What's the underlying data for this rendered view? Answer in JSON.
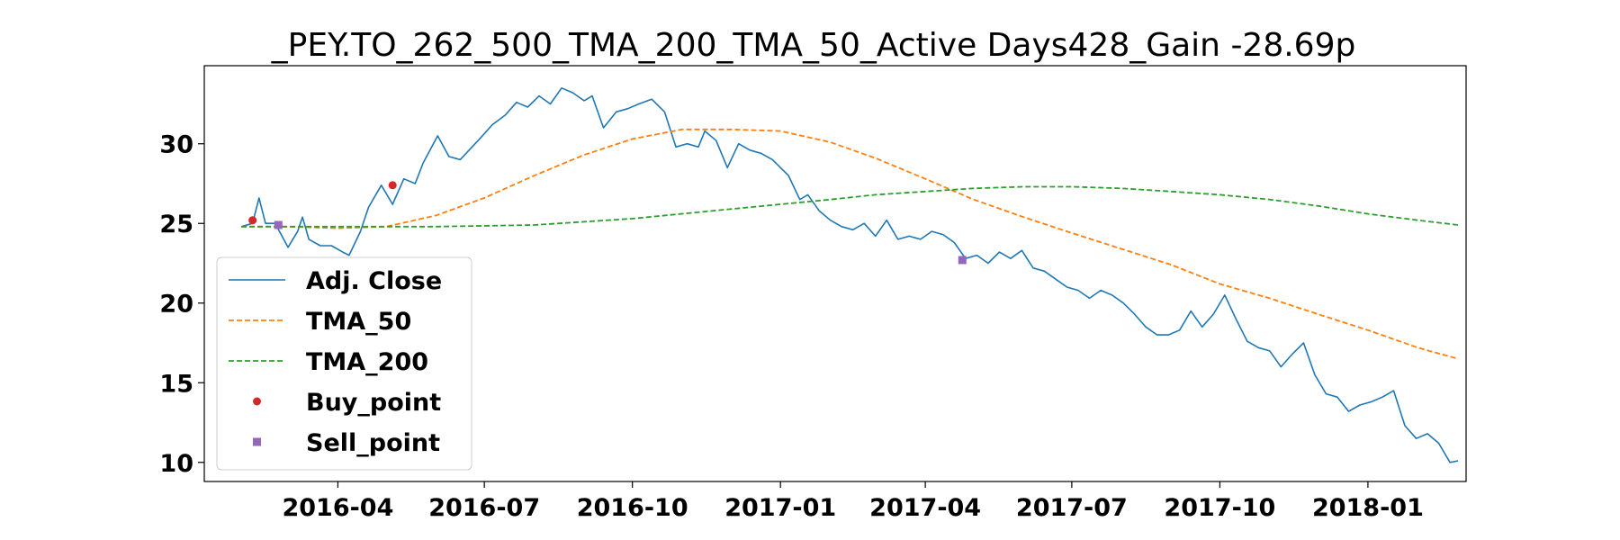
{
  "chart_data": {
    "type": "line",
    "title": "_PEY.TO_262_500_TMA_200_TMA_50_Active Days428_Gain -28.69p",
    "xlabel": "",
    "ylabel": "",
    "xlim": [
      "2016-01-09",
      "2018-03-03"
    ],
    "ylim": [
      8.8,
      34.9
    ],
    "grid": false,
    "legend_position": "lower-left",
    "x_ticks": [
      "2016-04",
      "2016-07",
      "2016-10",
      "2017-01",
      "2017-04",
      "2017-07",
      "2017-10",
      "2018-01"
    ],
    "y_ticks": [
      10,
      15,
      20,
      25,
      30
    ],
    "series": [
      {
        "name": "Adj. Close",
        "style": "solid",
        "color": "#1f77b4",
        "points": [
          [
            "2016-02-01",
            24.8
          ],
          [
            "2016-02-08",
            25.0
          ],
          [
            "2016-02-12",
            26.6
          ],
          [
            "2016-02-16",
            25.0
          ],
          [
            "2016-02-22",
            25.0
          ],
          [
            "2016-03-01",
            23.5
          ],
          [
            "2016-03-07",
            24.5
          ],
          [
            "2016-03-10",
            25.4
          ],
          [
            "2016-03-14",
            24.0
          ],
          [
            "2016-03-21",
            23.6
          ],
          [
            "2016-03-28",
            23.6
          ],
          [
            "2016-04-04",
            23.2
          ],
          [
            "2016-04-08",
            23.0
          ],
          [
            "2016-04-15",
            24.5
          ],
          [
            "2016-04-20",
            26.0
          ],
          [
            "2016-04-28",
            27.4
          ],
          [
            "2016-05-05",
            26.2
          ],
          [
            "2016-05-12",
            27.8
          ],
          [
            "2016-05-19",
            27.5
          ],
          [
            "2016-05-24",
            28.8
          ],
          [
            "2016-06-02",
            30.5
          ],
          [
            "2016-06-09",
            29.2
          ],
          [
            "2016-06-16",
            29.0
          ],
          [
            "2016-06-28",
            30.3
          ],
          [
            "2016-07-06",
            31.2
          ],
          [
            "2016-07-14",
            31.8
          ],
          [
            "2016-07-21",
            32.6
          ],
          [
            "2016-07-28",
            32.3
          ],
          [
            "2016-08-04",
            33.0
          ],
          [
            "2016-08-11",
            32.5
          ],
          [
            "2016-08-18",
            33.5
          ],
          [
            "2016-08-25",
            33.2
          ],
          [
            "2016-09-01",
            32.7
          ],
          [
            "2016-09-06",
            33.0
          ],
          [
            "2016-09-13",
            31.0
          ],
          [
            "2016-09-21",
            32.0
          ],
          [
            "2016-09-28",
            32.2
          ],
          [
            "2016-10-05",
            32.5
          ],
          [
            "2016-10-13",
            32.8
          ],
          [
            "2016-10-21",
            32.0
          ],
          [
            "2016-10-28",
            29.8
          ],
          [
            "2016-11-04",
            30.0
          ],
          [
            "2016-11-11",
            29.8
          ],
          [
            "2016-11-15",
            30.8
          ],
          [
            "2016-11-22",
            30.2
          ],
          [
            "2016-11-29",
            28.5
          ],
          [
            "2016-12-06",
            30.0
          ],
          [
            "2016-12-13",
            29.6
          ],
          [
            "2016-12-20",
            29.4
          ],
          [
            "2016-12-27",
            29.0
          ],
          [
            "2017-01-06",
            28.0
          ],
          [
            "2017-01-13",
            26.5
          ],
          [
            "2017-01-18",
            26.8
          ],
          [
            "2017-01-25",
            25.8
          ],
          [
            "2017-02-01",
            25.2
          ],
          [
            "2017-02-08",
            24.8
          ],
          [
            "2017-02-15",
            24.6
          ],
          [
            "2017-02-22",
            25.0
          ],
          [
            "2017-03-01",
            24.2
          ],
          [
            "2017-03-08",
            25.2
          ],
          [
            "2017-03-15",
            24.0
          ],
          [
            "2017-03-22",
            24.2
          ],
          [
            "2017-03-29",
            24.0
          ],
          [
            "2017-04-05",
            24.5
          ],
          [
            "2017-04-12",
            24.3
          ],
          [
            "2017-04-19",
            23.8
          ],
          [
            "2017-04-26",
            22.8
          ],
          [
            "2017-05-03",
            23.0
          ],
          [
            "2017-05-10",
            22.5
          ],
          [
            "2017-05-17",
            23.2
          ],
          [
            "2017-05-24",
            22.8
          ],
          [
            "2017-05-31",
            23.3
          ],
          [
            "2017-06-07",
            22.2
          ],
          [
            "2017-06-14",
            22.0
          ],
          [
            "2017-06-21",
            21.5
          ],
          [
            "2017-06-28",
            21.0
          ],
          [
            "2017-07-05",
            20.8
          ],
          [
            "2017-07-12",
            20.3
          ],
          [
            "2017-07-19",
            20.8
          ],
          [
            "2017-07-26",
            20.5
          ],
          [
            "2017-08-02",
            20.0
          ],
          [
            "2017-08-09",
            19.3
          ],
          [
            "2017-08-16",
            18.5
          ],
          [
            "2017-08-23",
            18.0
          ],
          [
            "2017-08-30",
            18.0
          ],
          [
            "2017-09-06",
            18.3
          ],
          [
            "2017-09-13",
            19.5
          ],
          [
            "2017-09-20",
            18.5
          ],
          [
            "2017-09-27",
            19.3
          ],
          [
            "2017-10-04",
            20.5
          ],
          [
            "2017-10-11",
            19.0
          ],
          [
            "2017-10-18",
            17.6
          ],
          [
            "2017-10-25",
            17.2
          ],
          [
            "2017-11-01",
            17.0
          ],
          [
            "2017-11-08",
            16.0
          ],
          [
            "2017-11-15",
            16.8
          ],
          [
            "2017-11-22",
            17.5
          ],
          [
            "2017-11-29",
            15.5
          ],
          [
            "2017-12-06",
            14.3
          ],
          [
            "2017-12-13",
            14.1
          ],
          [
            "2017-12-20",
            13.2
          ],
          [
            "2017-12-27",
            13.6
          ],
          [
            "2018-01-03",
            13.8
          ],
          [
            "2018-01-10",
            14.1
          ],
          [
            "2018-01-17",
            14.5
          ],
          [
            "2018-01-24",
            12.3
          ],
          [
            "2018-01-31",
            11.5
          ],
          [
            "2018-02-07",
            11.8
          ],
          [
            "2018-02-14",
            11.2
          ],
          [
            "2018-02-21",
            10.0
          ],
          [
            "2018-02-26",
            10.1
          ]
        ]
      },
      {
        "name": "TMA_50",
        "style": "dashed",
        "color": "#ff7f0e",
        "points": [
          [
            "2016-02-01",
            24.8
          ],
          [
            "2016-03-01",
            24.8
          ],
          [
            "2016-04-01",
            24.7
          ],
          [
            "2016-05-01",
            24.8
          ],
          [
            "2016-06-01",
            25.5
          ],
          [
            "2016-07-01",
            26.6
          ],
          [
            "2016-08-01",
            28.0
          ],
          [
            "2016-09-01",
            29.3
          ],
          [
            "2016-10-01",
            30.3
          ],
          [
            "2016-11-01",
            30.9
          ],
          [
            "2016-12-01",
            30.9
          ],
          [
            "2017-01-01",
            30.8
          ],
          [
            "2017-02-01",
            30.1
          ],
          [
            "2017-03-01",
            29.1
          ],
          [
            "2017-04-01",
            27.8
          ],
          [
            "2017-05-01",
            26.5
          ],
          [
            "2017-06-01",
            25.4
          ],
          [
            "2017-07-01",
            24.4
          ],
          [
            "2017-08-01",
            23.4
          ],
          [
            "2017-09-01",
            22.4
          ],
          [
            "2017-10-01",
            21.2
          ],
          [
            "2017-11-01",
            20.3
          ],
          [
            "2017-12-01",
            19.3
          ],
          [
            "2018-01-01",
            18.3
          ],
          [
            "2018-02-01",
            17.2
          ],
          [
            "2018-02-26",
            16.5
          ]
        ]
      },
      {
        "name": "TMA_200",
        "style": "dashed",
        "color": "#2ca02c",
        "points": [
          [
            "2016-02-01",
            24.8
          ],
          [
            "2016-04-01",
            24.8
          ],
          [
            "2016-06-01",
            24.8
          ],
          [
            "2016-08-01",
            24.9
          ],
          [
            "2016-10-01",
            25.3
          ],
          [
            "2016-12-01",
            25.9
          ],
          [
            "2017-01-01",
            26.2
          ],
          [
            "2017-02-01",
            26.5
          ],
          [
            "2017-03-01",
            26.8
          ],
          [
            "2017-04-01",
            27.0
          ],
          [
            "2017-05-01",
            27.2
          ],
          [
            "2017-06-01",
            27.3
          ],
          [
            "2017-07-01",
            27.3
          ],
          [
            "2017-08-01",
            27.2
          ],
          [
            "2017-09-01",
            27.0
          ],
          [
            "2017-10-01",
            26.8
          ],
          [
            "2017-11-01",
            26.5
          ],
          [
            "2017-12-01",
            26.1
          ],
          [
            "2018-01-01",
            25.6
          ],
          [
            "2018-02-01",
            25.2
          ],
          [
            "2018-02-26",
            24.9
          ]
        ]
      },
      {
        "name": "Buy_point",
        "style": "marker-circle",
        "color": "#d62728",
        "points": [
          [
            "2016-02-08",
            25.2
          ],
          [
            "2016-05-05",
            27.4
          ]
        ]
      },
      {
        "name": "Sell_point",
        "style": "marker-square",
        "color": "#9467bd",
        "points": [
          [
            "2016-02-24",
            24.9
          ],
          [
            "2017-04-24",
            22.7
          ]
        ]
      }
    ]
  }
}
